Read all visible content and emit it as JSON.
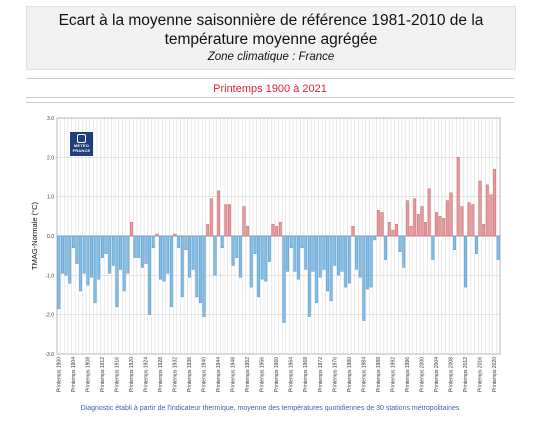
{
  "header": {
    "title_line1": "Ecart à la moyenne saisonnière  de référence 1981-2010  de la",
    "title_line2": "température moyenne  agrégée",
    "zone": "Zone climatique : France"
  },
  "subtitle": "Printemps 1900 à 2021",
  "footnote": "Diagnostic établi à partir de l'indicateur thermique, moyenne des températures quotidiennes de 30 stations métropolitaines",
  "logo": {
    "line1": "METEO",
    "line2": "FRANCE"
  },
  "colors": {
    "positive": "#e7999c",
    "negative": "#84bde6",
    "positive_edge": "#c85a5e",
    "negative_edge": "#3d8ec9",
    "grid": "#d6d6d6"
  },
  "chart_data": {
    "type": "bar",
    "ylabel": "TMAG-Normale (°C)",
    "ylim": [
      -3.0,
      3.0
    ],
    "yticks": [
      "3.0",
      "2.0",
      "1.0",
      "0.0",
      "-1.0",
      "-2.0",
      "-3.0"
    ],
    "years": [
      1900,
      1901,
      1902,
      1903,
      1904,
      1905,
      1906,
      1907,
      1908,
      1909,
      1910,
      1911,
      1912,
      1913,
      1914,
      1915,
      1916,
      1917,
      1918,
      1919,
      1920,
      1921,
      1922,
      1923,
      1924,
      1925,
      1926,
      1927,
      1928,
      1929,
      1930,
      1931,
      1932,
      1933,
      1934,
      1935,
      1936,
      1937,
      1938,
      1939,
      1940,
      1941,
      1942,
      1943,
      1944,
      1945,
      1946,
      1947,
      1948,
      1949,
      1950,
      1951,
      1952,
      1953,
      1954,
      1955,
      1956,
      1957,
      1958,
      1959,
      1960,
      1961,
      1962,
      1963,
      1964,
      1965,
      1966,
      1967,
      1968,
      1969,
      1970,
      1971,
      1972,
      1973,
      1974,
      1975,
      1976,
      1977,
      1978,
      1979,
      1980,
      1981,
      1982,
      1983,
      1984,
      1985,
      1986,
      1987,
      1988,
      1989,
      1990,
      1991,
      1992,
      1993,
      1994,
      1995,
      1996,
      1997,
      1998,
      1999,
      2000,
      2001,
      2002,
      2003,
      2004,
      2005,
      2006,
      2007,
      2008,
      2009,
      2010,
      2011,
      2012,
      2013,
      2014,
      2015,
      2016,
      2017,
      2018,
      2019,
      2020,
      2021
    ],
    "x_tick_labels": [
      "Printemps 1900",
      "Printemps 1904",
      "Printemps 1908",
      "Printemps 1912",
      "Printemps 1916",
      "Printemps 1920",
      "Printemps 1924",
      "Printemps 1928",
      "Printemps 1932",
      "Printemps 1936",
      "Printemps 1940",
      "Printemps 1944",
      "Printemps 1948",
      "Printemps 1952",
      "Printemps 1956",
      "Printemps 1960",
      "Printemps 1964",
      "Printemps 1968",
      "Printemps 1972",
      "Printemps 1976",
      "Printemps 1980",
      "Printemps 1984",
      "Printemps 1988",
      "Printemps 1992",
      "Printemps 1996",
      "Printemps 2000",
      "Printemps 2004",
      "Printemps 2008",
      "Printemps 2012",
      "Printemps 2016",
      "Printemps 2020"
    ],
    "values": [
      -1.85,
      -0.95,
      -1.0,
      -1.2,
      -0.3,
      -0.7,
      -1.4,
      -0.95,
      -1.25,
      -1.05,
      -1.7,
      -1.1,
      -0.55,
      -0.45,
      -0.95,
      -0.75,
      -1.8,
      -0.85,
      -1.4,
      -0.95,
      0.35,
      -0.55,
      -0.55,
      -0.8,
      -0.7,
      -2.0,
      -0.3,
      0.05,
      -1.1,
      -1.15,
      -0.95,
      -1.8,
      0.05,
      -0.3,
      -1.55,
      -0.35,
      -1.05,
      -0.85,
      -1.55,
      -1.7,
      -2.05,
      0.3,
      0.95,
      -1.0,
      1.15,
      -0.3,
      0.8,
      0.8,
      -0.75,
      -0.55,
      -1.05,
      0.75,
      0.25,
      -1.3,
      -0.45,
      -1.55,
      -1.1,
      -1.15,
      -0.65,
      0.3,
      0.25,
      0.35,
      -2.2,
      -0.9,
      -0.3,
      -0.9,
      -1.1,
      -0.3,
      -0.85,
      -2.05,
      -0.9,
      -1.7,
      -1.05,
      -0.85,
      -1.4,
      -1.65,
      -0.75,
      -1.0,
      -0.9,
      -1.3,
      -1.2,
      0.25,
      -0.85,
      -1.05,
      -2.15,
      -1.35,
      -1.3,
      -0.1,
      0.65,
      0.6,
      -0.6,
      0.35,
      0.15,
      0.3,
      -0.4,
      -0.8,
      0.9,
      0.25,
      0.95,
      0.55,
      0.75,
      0.35,
      1.2,
      -0.6,
      0.6,
      0.5,
      0.45,
      0.9,
      1.1,
      -0.35,
      2.0,
      0.75,
      -1.3,
      0.85,
      0.8,
      -0.45,
      1.4,
      0.3,
      1.3,
      1.05,
      1.7,
      -0.6
    ]
  }
}
